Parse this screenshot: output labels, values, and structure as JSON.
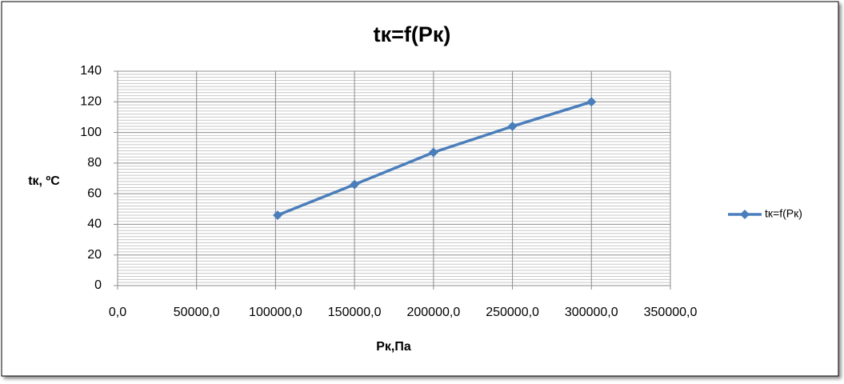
{
  "chart_data": {
    "type": "line",
    "title": "tк=f(Pк)",
    "x_label": "Pк,Па",
    "y_label": "tк, ºC",
    "x": [
      101325,
      150000,
      200000,
      250000,
      300000
    ],
    "series": [
      {
        "name": "tк=f(Pк)",
        "color": "#4a7ebb",
        "values": [
          46,
          66,
          87,
          104,
          120
        ]
      }
    ],
    "xlim": [
      0,
      350000
    ],
    "xticks": [
      {
        "value": 0,
        "label": "0,0"
      },
      {
        "value": 50000,
        "label": "50000,0"
      },
      {
        "value": 100000,
        "label": "100000,0"
      },
      {
        "value": 150000,
        "label": "150000,0"
      },
      {
        "value": 200000,
        "label": "200000,0"
      },
      {
        "value": 250000,
        "label": "250000,0"
      },
      {
        "value": 300000,
        "label": "300000,0"
      },
      {
        "value": 350000,
        "label": "350000,0"
      }
    ],
    "ylim": [
      0,
      140
    ],
    "yticks": [
      0,
      20,
      40,
      60,
      80,
      100,
      120,
      140
    ],
    "grid": true,
    "minor_ygrid": true,
    "legend": "right"
  }
}
